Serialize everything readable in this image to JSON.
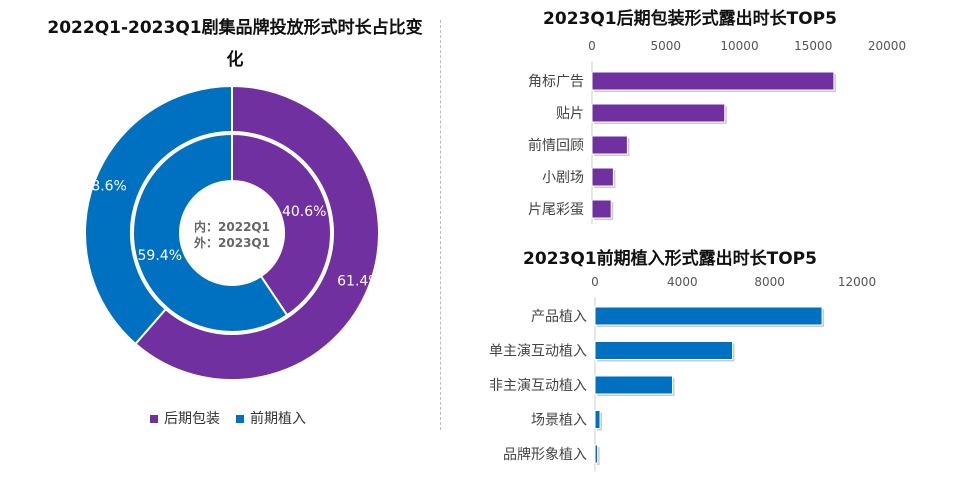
{
  "colors": {
    "post": "#7030A0",
    "pre": "#0070C0"
  },
  "chart_data": [
    {
      "type": "pie",
      "title": "2022Q1-2023Q1剧集品牌投放形式时长占比变化",
      "center_label": [
        "内：2022Q1",
        "外：2023Q1"
      ],
      "legend": [
        "后期包装",
        "前期植入"
      ],
      "legend_position": "bottom",
      "rings": [
        {
          "name": "2022Q1",
          "position": "inner",
          "values": [
            40.6,
            59.4
          ],
          "labels": [
            "40.6%",
            "59.4%"
          ]
        },
        {
          "name": "2023Q1",
          "position": "outer",
          "values": [
            61.4,
            38.6
          ],
          "labels": [
            "61.4%",
            "38.6%"
          ]
        }
      ]
    },
    {
      "type": "bar",
      "orientation": "horizontal",
      "title": "2023Q1后期包装形式露出时长TOP5",
      "categories": [
        "角标广告",
        "贴片",
        "前情回顾",
        "小剧场",
        "片尾彩蛋"
      ],
      "values": [
        16400,
        9000,
        2400,
        1450,
        1300
      ],
      "xlim": [
        0,
        20000
      ],
      "ticks": [
        "0",
        "5000",
        "10000",
        "15000",
        "20000"
      ],
      "grid": false
    },
    {
      "type": "bar",
      "orientation": "horizontal",
      "title": "2023Q1前期植入形式露出时长TOP5",
      "categories": [
        "产品植入",
        "单主演互动植入",
        "非主演互动植入",
        "场景植入",
        "品牌形象植入"
      ],
      "values": [
        10400,
        6300,
        3550,
        230,
        120
      ],
      "xlim": [
        0,
        12000
      ],
      "ticks": [
        "0",
        "4000",
        "8000",
        "12000"
      ],
      "grid": false
    }
  ]
}
